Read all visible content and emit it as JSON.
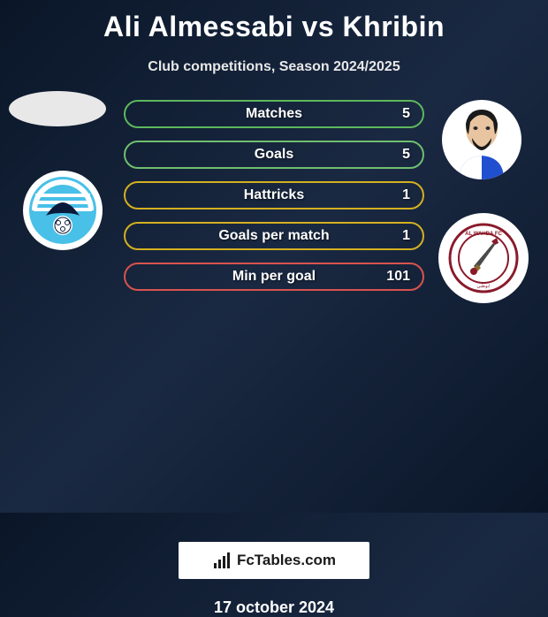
{
  "title": "Ali Almessabi vs Khribin",
  "subtitle": "Club competitions, Season 2024/2025",
  "date": "17 october 2024",
  "branding": "FcTables.com",
  "stats": [
    {
      "label": "Matches",
      "value": "5",
      "border_color": "#5cb85c"
    },
    {
      "label": "Goals",
      "value": "5",
      "border_color": "#6fbf6f"
    },
    {
      "label": "Hattricks",
      "value": "1",
      "border_color": "#d4b020"
    },
    {
      "label": "Goals per match",
      "value": "1",
      "border_color": "#d4b020"
    },
    {
      "label": "Min per goal",
      "value": "101",
      "border_color": "#d9534f"
    }
  ],
  "colors": {
    "background": "#0a1628",
    "text": "#ffffff",
    "subtitle_text": "#e8e8e8"
  },
  "typography": {
    "title_fontsize": 32,
    "subtitle_fontsize": 16,
    "stat_label_fontsize": 16,
    "date_fontsize": 18
  }
}
